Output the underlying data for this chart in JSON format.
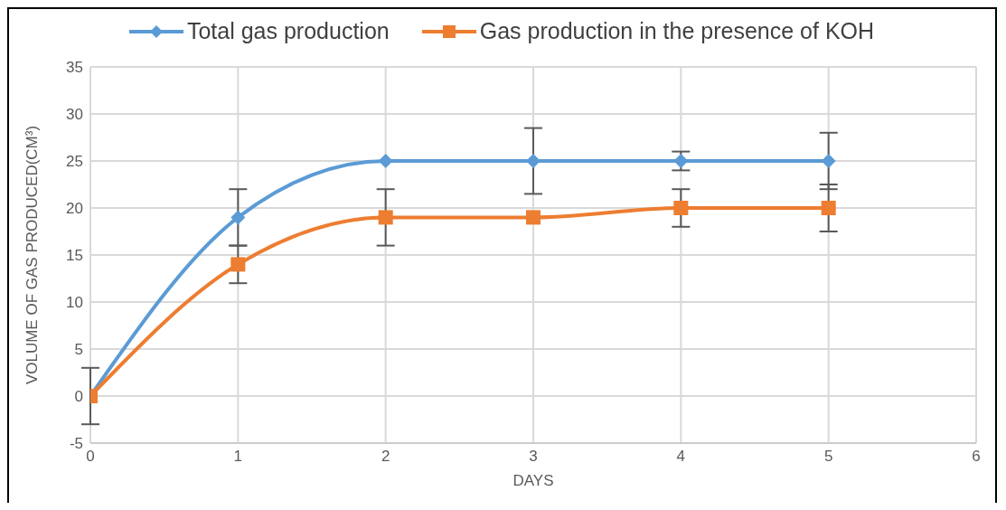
{
  "chart_data": {
    "type": "line",
    "xlabel": "DAYS",
    "ylabel": "VOLUME OF GAS PRODUCED(CM³)",
    "x": [
      0,
      1,
      2,
      3,
      4,
      5
    ],
    "series": [
      {
        "name": "Total gas production",
        "color": "#5b9bd5",
        "marker": "diamond",
        "values": [
          0,
          19,
          25,
          25,
          25,
          25
        ],
        "errors": [
          3,
          3,
          null,
          3.5,
          1,
          3
        ]
      },
      {
        "name": "Gas production in the presence of KOH",
        "color": "#ed7d31",
        "marker": "square",
        "values": [
          0,
          14,
          19,
          19,
          20,
          20
        ],
        "errors": [
          null,
          2,
          3,
          null,
          2,
          2.5
        ]
      }
    ],
    "xlim": [
      0,
      6
    ],
    "xticks": [
      0,
      1,
      2,
      3,
      4,
      5,
      6
    ],
    "ylim": [
      -5,
      35
    ],
    "yticks": [
      -5,
      0,
      5,
      10,
      15,
      20,
      25,
      30,
      35
    ],
    "grid": true,
    "legend": "top"
  }
}
